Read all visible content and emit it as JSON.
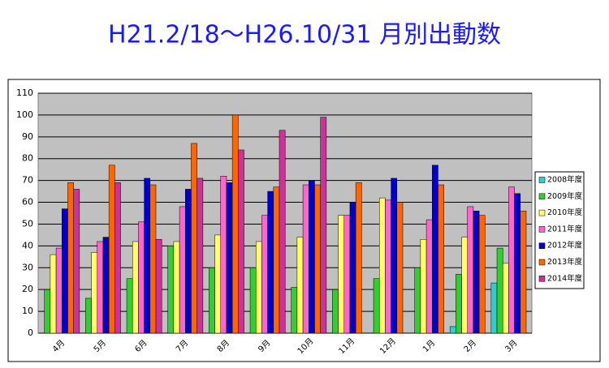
{
  "chart_data": {
    "type": "bar",
    "title": "H21.2/18〜H26.10/31 月別出動数",
    "categories": [
      "4月",
      "5月",
      "6月",
      "7月",
      "8月",
      "9月",
      "10月",
      "11月",
      "12月",
      "1月",
      "2月",
      "3月"
    ],
    "series": [
      {
        "name": "2008年度",
        "color": "#33cccc",
        "values": [
          null,
          null,
          null,
          null,
          null,
          null,
          null,
          null,
          null,
          null,
          3,
          23
        ]
      },
      {
        "name": "2009年度",
        "color": "#33cc33",
        "values": [
          20,
          16,
          25,
          40,
          30,
          30,
          21,
          20,
          25,
          30,
          27,
          39
        ]
      },
      {
        "name": "2010年度",
        "color": "#ffff66",
        "values": [
          36,
          37,
          42,
          42,
          45,
          42,
          44,
          54,
          62,
          43,
          44,
          32
        ]
      },
      {
        "name": "2011年度",
        "color": "#ff66cc",
        "values": [
          39,
          42,
          51,
          58,
          72,
          54,
          68,
          54,
          61,
          52,
          58,
          67
        ]
      },
      {
        "name": "2012年度",
        "color": "#0000cc",
        "values": [
          57,
          44,
          71,
          66,
          69,
          65,
          70,
          60,
          71,
          77,
          56,
          64
        ]
      },
      {
        "name": "2013年度",
        "color": "#ff6600",
        "values": [
          69,
          77,
          68,
          87,
          100,
          67,
          68,
          69,
          60,
          68,
          54,
          56
        ]
      },
      {
        "name": "2014年度",
        "color": "#cc3399",
        "values": [
          66,
          69,
          43,
          71,
          84,
          93,
          99,
          null,
          null,
          null,
          null,
          null
        ]
      }
    ],
    "ylim": [
      0,
      110
    ],
    "yticks": [
      0,
      10,
      20,
      30,
      40,
      50,
      60,
      70,
      80,
      90,
      100,
      110
    ],
    "grid": true,
    "plot_background": "#c0c0c0"
  }
}
